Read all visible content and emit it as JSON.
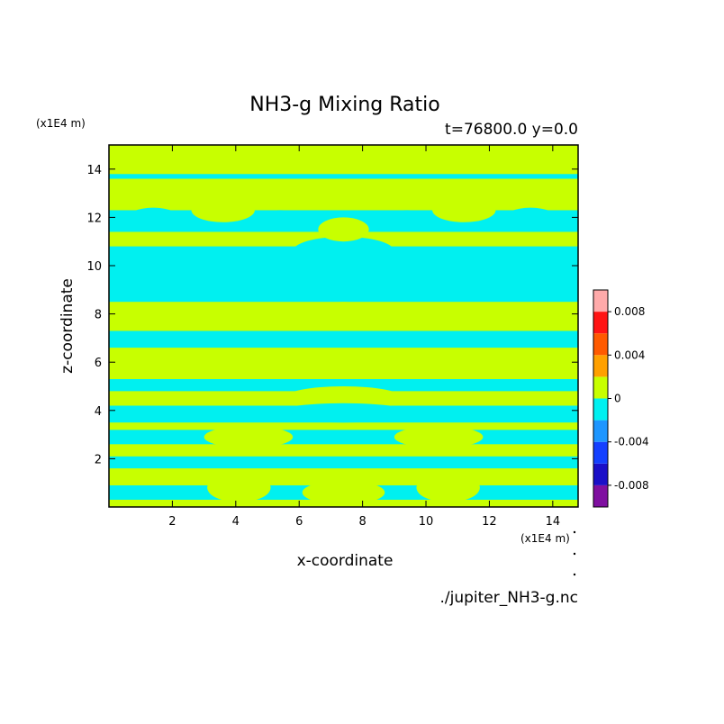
{
  "chart_data": {
    "type": "heatmap",
    "title": "NH3-g Mixing Ratio",
    "subtitle": "t=76800.0 y=0.0",
    "xlabel": "x-coordinate",
    "ylabel": "z-coordinate",
    "x_units": "(x1E4 m)",
    "y_units": "(x1E4 m)",
    "xlim": [
      0,
      14.8
    ],
    "ylim": [
      0,
      15
    ],
    "x_ticks": [
      2,
      4,
      6,
      8,
      10,
      12,
      14
    ],
    "y_ticks": [
      2,
      4,
      6,
      8,
      10,
      12,
      14
    ],
    "source_file": "./jupiter_NH3-g.nc",
    "colorbar": {
      "levels": [
        -0.01,
        -0.008,
        -0.006,
        -0.004,
        -0.002,
        0,
        0.002,
        0.004,
        0.006,
        0.008,
        0.01
      ],
      "colors": [
        "#7f0fa0",
        "#1a0fc8",
        "#1440ff",
        "#1e96ff",
        "#00f0f0",
        "#c8ff00",
        "#ffa000",
        "#ff5a00",
        "#ff1414",
        "#ffaaaa"
      ],
      "tick_labels": [
        {
          "value": -0.008,
          "label": "-0.008"
        },
        {
          "value": -0.004,
          "label": "-0.004"
        },
        {
          "value": 0,
          "label": "0"
        },
        {
          "value": 0.004,
          "label": "0.004"
        },
        {
          "value": 0.008,
          "label": "0.008"
        }
      ]
    },
    "dominant_classes": {
      "negative": "#00f0f0",
      "positive": "#c8ff00"
    },
    "bands": [
      {
        "z0": 0.0,
        "z1": 0.3,
        "class": "positive"
      },
      {
        "z0": 0.3,
        "z1": 0.9,
        "class": "negative"
      },
      {
        "z0": 0.9,
        "z1": 1.6,
        "class": "positive"
      },
      {
        "z0": 1.6,
        "z1": 2.1,
        "class": "negative"
      },
      {
        "z0": 2.1,
        "z1": 2.6,
        "class": "positive"
      },
      {
        "z0": 2.6,
        "z1": 3.2,
        "class": "negative"
      },
      {
        "z0": 3.2,
        "z1": 3.5,
        "class": "positive"
      },
      {
        "z0": 3.5,
        "z1": 4.2,
        "class": "negative"
      },
      {
        "z0": 4.2,
        "z1": 4.8,
        "class": "positive"
      },
      {
        "z0": 4.8,
        "z1": 5.3,
        "class": "negative"
      },
      {
        "z0": 5.3,
        "z1": 6.6,
        "class": "positive"
      },
      {
        "z0": 6.6,
        "z1": 7.3,
        "class": "negative"
      },
      {
        "z0": 7.3,
        "z1": 8.5,
        "class": "positive"
      },
      {
        "z0": 8.5,
        "z1": 10.8,
        "class": "negative"
      },
      {
        "z0": 10.8,
        "z1": 11.4,
        "class": "positive"
      },
      {
        "z0": 11.4,
        "z1": 12.3,
        "class": "negative"
      },
      {
        "z0": 12.3,
        "z1": 13.6,
        "class": "positive"
      },
      {
        "z0": 13.6,
        "z1": 13.8,
        "class": "negative"
      },
      {
        "z0": 13.8,
        "z1": 15.0,
        "class": "positive"
      }
    ],
    "blobs": [
      {
        "x": 7.4,
        "z": 4.5,
        "rx": 1.9,
        "rz": 0.5,
        "class": "positive"
      },
      {
        "x": 7.4,
        "z": 8.0,
        "rx": 0.9,
        "rz": 0.5,
        "class": "positive"
      },
      {
        "x": 7.4,
        "z": 10.6,
        "rx": 1.6,
        "rz": 0.6,
        "class": "negative"
      },
      {
        "x": 1.4,
        "z": 11.9,
        "rx": 0.9,
        "rz": 0.5,
        "class": "negative"
      },
      {
        "x": 13.3,
        "z": 11.9,
        "rx": 0.9,
        "rz": 0.5,
        "class": "negative"
      },
      {
        "x": 3.6,
        "z": 12.3,
        "rx": 1.0,
        "rz": 0.5,
        "class": "positive"
      },
      {
        "x": 11.2,
        "z": 12.3,
        "rx": 1.0,
        "rz": 0.5,
        "class": "positive"
      },
      {
        "x": 5.4,
        "z": 12.0,
        "rx": 0.6,
        "rz": 0.3,
        "class": "negative"
      },
      {
        "x": 9.4,
        "z": 12.0,
        "rx": 0.6,
        "rz": 0.3,
        "class": "negative"
      },
      {
        "x": 7.4,
        "z": 11.5,
        "rx": 0.8,
        "rz": 0.5,
        "class": "positive"
      },
      {
        "x": 7.4,
        "z": 0.6,
        "rx": 1.3,
        "rz": 0.5,
        "class": "positive"
      },
      {
        "x": 4.1,
        "z": 0.8,
        "rx": 1.0,
        "rz": 0.6,
        "class": "positive"
      },
      {
        "x": 10.7,
        "z": 0.8,
        "rx": 1.0,
        "rz": 0.6,
        "class": "positive"
      },
      {
        "x": 4.4,
        "z": 2.9,
        "rx": 1.4,
        "rz": 0.45,
        "class": "positive"
      },
      {
        "x": 10.4,
        "z": 2.9,
        "rx": 1.4,
        "rz": 0.45,
        "class": "positive"
      },
      {
        "x": 7.4,
        "z": 3.9,
        "rx": 2.2,
        "rz": 0.4,
        "class": "negative"
      }
    ]
  }
}
